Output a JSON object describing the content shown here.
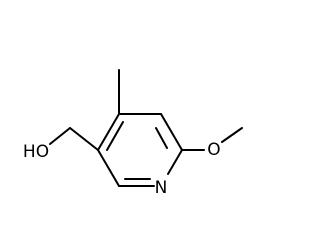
{
  "molecule": {
    "atoms": {
      "hydroxyl": "HO",
      "nitrogen": "N",
      "methoxy_oxygen": "O"
    }
  }
}
